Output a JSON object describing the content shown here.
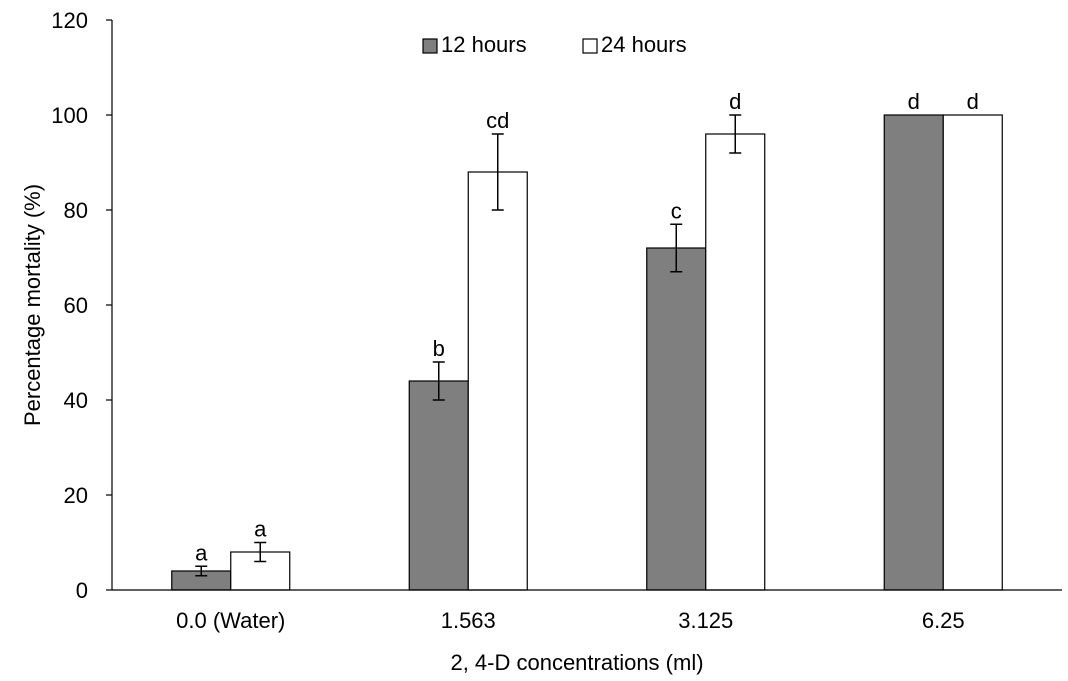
{
  "chart_data": {
    "type": "bar",
    "title": "",
    "xlabel": "2, 4-D concentrations (ml)",
    "ylabel": "Percentage mortality (%)",
    "ylim": [
      0,
      120
    ],
    "yticks": [
      0,
      20,
      40,
      60,
      80,
      100,
      120
    ],
    "categories": [
      "0.0 (Water)",
      "1.563",
      "3.125",
      "6.25"
    ],
    "legend_position": "top-center",
    "grid": false,
    "series": [
      {
        "name": "12 hours",
        "color": "#7f7f7f",
        "values": [
          4,
          44,
          72,
          100
        ],
        "errors": [
          1,
          4,
          5,
          0
        ],
        "labels": [
          "a",
          "b",
          "c",
          "d"
        ]
      },
      {
        "name": "24 hours",
        "color": "#ffffff",
        "values": [
          8,
          88,
          96,
          100
        ],
        "errors": [
          2,
          8,
          4,
          0
        ],
        "labels": [
          "a",
          "cd",
          "d",
          "d"
        ]
      }
    ]
  }
}
